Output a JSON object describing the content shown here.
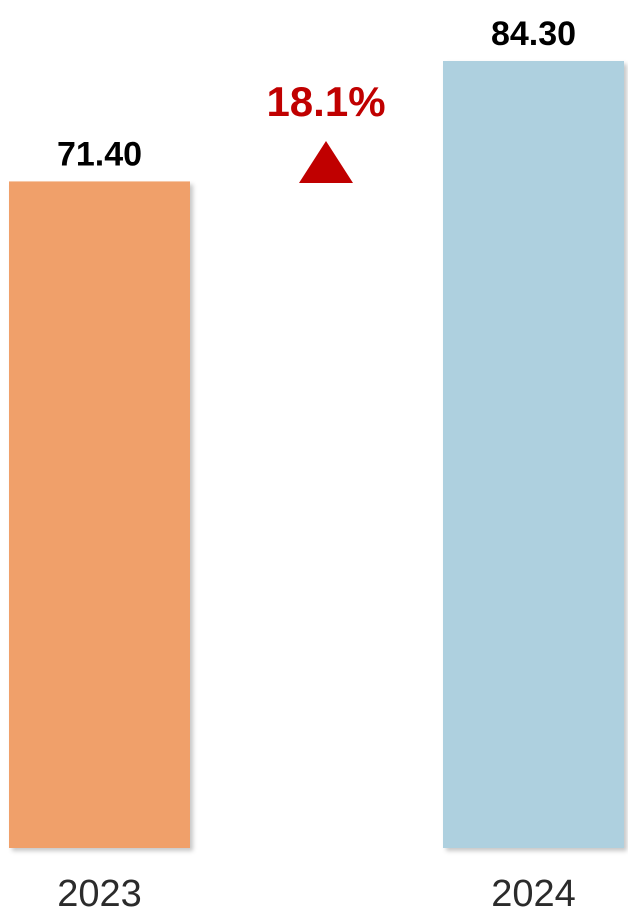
{
  "chart_data": {
    "type": "bar",
    "categories": [
      "2023",
      "2024"
    ],
    "values": [
      71.4,
      84.3
    ],
    "value_labels": [
      "71.40",
      "84.30"
    ],
    "colors": [
      "#F0A06A",
      "#AED0DF"
    ],
    "ylim": [
      0,
      84.3
    ],
    "grid": false,
    "legend": "none",
    "annotation": {
      "text": "18.1%",
      "direction": "up",
      "icon": "triangle-up-icon",
      "color": "#C00000"
    }
  }
}
